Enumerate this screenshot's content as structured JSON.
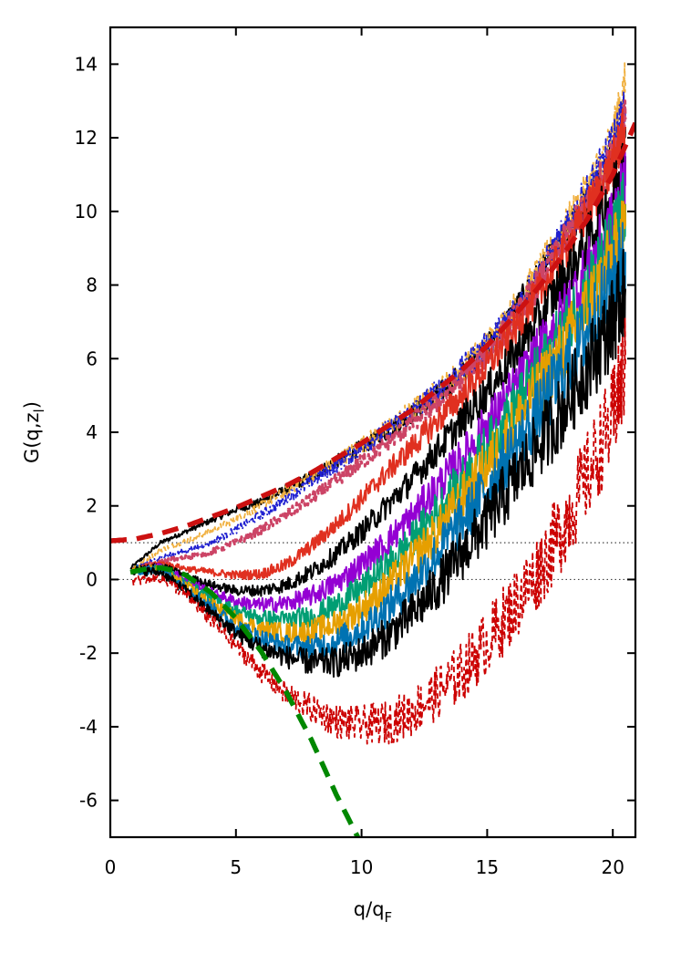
{
  "chart_data": {
    "type": "line",
    "title": "",
    "xlabel": "q/q",
    "xlabel_sub": "F",
    "ylabel": "G(q,z",
    "ylabel_sub": "l",
    "ylabel_close": ")",
    "xlim": [
      0,
      20.9
    ],
    "ylim": [
      -7,
      15
    ],
    "x_ticks": [
      0,
      5,
      10,
      15,
      20
    ],
    "y_ticks": [
      -6,
      -4,
      -2,
      0,
      2,
      4,
      6,
      8,
      10,
      12,
      14
    ],
    "reference_lines": [
      0,
      1
    ],
    "grid": false,
    "legend": "none",
    "series": [
      {
        "color": "#000000",
        "style": "solid",
        "width": 2.0,
        "noise": 0.22,
        "x": [
          0.8,
          2,
          3,
          4,
          5,
          6,
          7,
          8,
          9,
          10,
          11,
          12,
          13,
          14,
          15,
          16,
          17,
          18,
          19,
          20,
          20.5
        ],
        "y": [
          0.3,
          1.0,
          1.3,
          1.6,
          1.9,
          2.1,
          2.45,
          2.8,
          3.2,
          3.6,
          4.0,
          4.5,
          5.0,
          5.6,
          6.3,
          7.2,
          8.2,
          9.2,
          10.3,
          11.5,
          12.3
        ]
      },
      {
        "color": "#f0b040",
        "style": "dashed",
        "width": 1.8,
        "noise": 0.25,
        "x": [
          0.9,
          2,
          3,
          4,
          5,
          6,
          7,
          8,
          9,
          10,
          11,
          12,
          13,
          14,
          15,
          16,
          17,
          18,
          19,
          20,
          20.5
        ],
        "y": [
          0.3,
          0.8,
          1.05,
          1.3,
          1.65,
          2.0,
          2.4,
          2.8,
          3.2,
          3.65,
          4.1,
          4.6,
          5.1,
          5.7,
          6.4,
          7.3,
          8.3,
          9.4,
          10.6,
          12.0,
          13.5
        ]
      },
      {
        "color": "#2020d0",
        "style": "dashdot",
        "width": 1.8,
        "noise": 0.25,
        "x": [
          0.9,
          2,
          3,
          4,
          5,
          6,
          7,
          8,
          9,
          10,
          11,
          12,
          13,
          14,
          15,
          16,
          17,
          18,
          19,
          20,
          20.5
        ],
        "y": [
          0.3,
          0.6,
          0.78,
          1.0,
          1.35,
          1.75,
          2.2,
          2.65,
          3.1,
          3.6,
          4.05,
          4.55,
          5.1,
          5.7,
          6.35,
          7.2,
          8.2,
          9.3,
          10.5,
          11.8,
          12.8
        ]
      },
      {
        "color": "#cc4466",
        "style": "dashed",
        "width": 3.0,
        "noise": 0.22,
        "x": [
          0.9,
          2,
          3,
          4,
          5,
          6,
          7,
          8,
          9,
          10,
          11,
          12,
          13,
          14,
          15,
          16,
          17,
          18,
          19,
          20,
          20.5
        ],
        "y": [
          0.25,
          0.5,
          0.6,
          0.75,
          1.0,
          1.35,
          1.75,
          2.2,
          2.7,
          3.2,
          3.7,
          4.25,
          4.8,
          5.45,
          6.1,
          7.0,
          8.0,
          9.1,
          10.2,
          11.5,
          12.5
        ]
      },
      {
        "color": "#e03020",
        "style": "solid",
        "width": 2.0,
        "noise": 0.28,
        "x": [
          0.9,
          2,
          3,
          4,
          5,
          6,
          7,
          8,
          9,
          10,
          11,
          12,
          13,
          14,
          15,
          16,
          17,
          18,
          19,
          20,
          20.5
        ],
        "y": [
          0.25,
          0.45,
          0.3,
          0.2,
          0.12,
          0.15,
          0.4,
          0.9,
          1.5,
          2.2,
          2.9,
          3.6,
          4.3,
          5.0,
          5.8,
          6.7,
          7.7,
          8.8,
          10.0,
          11.3,
          12.3
        ]
      },
      {
        "color": "#000000",
        "style": "solid",
        "width": 2.0,
        "noise": 0.32,
        "x": [
          0.9,
          2,
          3,
          4,
          5,
          6,
          7,
          8,
          9,
          10,
          11,
          12,
          13,
          14,
          15,
          16,
          17,
          18,
          19,
          20,
          20.5
        ],
        "y": [
          0.25,
          0.4,
          0.1,
          -0.15,
          -0.3,
          -0.3,
          -0.15,
          0.2,
          0.7,
          1.3,
          2.0,
          2.7,
          3.5,
          4.3,
          5.1,
          6.0,
          7.0,
          8.1,
          9.2,
          10.5,
          11.5
        ]
      },
      {
        "color": "#9400d3",
        "style": "solid",
        "width": 2.0,
        "noise": 0.38,
        "x": [
          0.9,
          2,
          3,
          4,
          5,
          6,
          7,
          8,
          9,
          10,
          11,
          12,
          13,
          14,
          15,
          16,
          17,
          18,
          19,
          20,
          20.5
        ],
        "y": [
          0.25,
          0.35,
          0.0,
          -0.35,
          -0.6,
          -0.7,
          -0.65,
          -0.45,
          -0.1,
          0.4,
          1.0,
          1.7,
          2.5,
          3.3,
          4.2,
          5.1,
          6.1,
          7.2,
          8.4,
          9.7,
          10.7
        ]
      },
      {
        "color": "#009e73",
        "style": "solid",
        "width": 2.0,
        "noise": 0.42,
        "x": [
          0.9,
          2,
          3,
          4,
          5,
          6,
          7,
          8,
          9,
          10,
          11,
          12,
          13,
          14,
          15,
          16,
          17,
          18,
          19,
          20,
          20.5
        ],
        "y": [
          0.25,
          0.3,
          -0.1,
          -0.5,
          -0.85,
          -1.05,
          -1.1,
          -1.0,
          -0.7,
          -0.25,
          0.35,
          1.05,
          1.85,
          2.7,
          3.6,
          4.6,
          5.6,
          6.7,
          7.9,
          9.2,
          10.2
        ]
      },
      {
        "color": "#e69f00",
        "style": "solid",
        "width": 2.0,
        "noise": 0.45,
        "x": [
          0.9,
          2,
          3,
          4,
          5,
          6,
          7,
          8,
          9,
          10,
          11,
          12,
          13,
          14,
          15,
          16,
          17,
          18,
          19,
          20,
          20.5
        ],
        "y": [
          0.25,
          0.3,
          -0.15,
          -0.65,
          -1.05,
          -1.35,
          -1.45,
          -1.4,
          -1.2,
          -0.8,
          -0.2,
          0.5,
          1.3,
          2.2,
          3.1,
          4.1,
          5.1,
          6.2,
          7.4,
          8.7,
          9.6
        ]
      },
      {
        "color": "#0072b2",
        "style": "solid",
        "width": 2.0,
        "noise": 0.48,
        "x": [
          0.9,
          2,
          3,
          4,
          5,
          6,
          7,
          8,
          9,
          10,
          11,
          12,
          13,
          14,
          15,
          16,
          17,
          18,
          19,
          20,
          20.5
        ],
        "y": [
          0.25,
          0.25,
          -0.2,
          -0.75,
          -1.25,
          -1.6,
          -1.8,
          -1.85,
          -1.7,
          -1.35,
          -0.8,
          -0.1,
          0.7,
          1.6,
          2.5,
          3.5,
          4.5,
          5.6,
          6.8,
          8.0,
          8.9
        ]
      },
      {
        "color": "#000000",
        "style": "solid",
        "width": 2.0,
        "noise": 0.5,
        "x": [
          0.9,
          2,
          3,
          4,
          5,
          6,
          7,
          8,
          9,
          10,
          11,
          12,
          13,
          14,
          15,
          16,
          17,
          18,
          19,
          20,
          20.5
        ],
        "y": [
          0.25,
          0.2,
          -0.3,
          -0.9,
          -1.45,
          -1.85,
          -2.1,
          -2.25,
          -2.25,
          -2.0,
          -1.55,
          -0.95,
          -0.2,
          0.7,
          1.6,
          2.6,
          3.6,
          4.6,
          5.8,
          7.0,
          7.9
        ]
      },
      {
        "color": "#cc0000",
        "style": "dashed",
        "width": 1.8,
        "noise": 0.55,
        "x": [
          0.9,
          2,
          3,
          4,
          5,
          6,
          7,
          8,
          9,
          10,
          11,
          12,
          13,
          14,
          15,
          16,
          17,
          18,
          19,
          20,
          20.5
        ],
        "y": [
          -0.05,
          0.05,
          -0.4,
          -1.1,
          -1.8,
          -2.5,
          -3.1,
          -3.5,
          -3.85,
          -3.95,
          -3.9,
          -3.6,
          -3.1,
          -2.5,
          -1.7,
          -0.8,
          0.2,
          1.4,
          2.8,
          4.4,
          5.8
        ]
      },
      {
        "color": "#cc1111",
        "style": "longdash",
        "width": 5.5,
        "noise": 0,
        "x": [
          0,
          1,
          2,
          3,
          4,
          5,
          6,
          7,
          8,
          9,
          10,
          11,
          12,
          13,
          14,
          15,
          16,
          17,
          18,
          19,
          20,
          20.9
        ],
        "y": [
          1.05,
          1.1,
          1.25,
          1.45,
          1.7,
          1.95,
          2.25,
          2.55,
          2.9,
          3.3,
          3.7,
          4.15,
          4.6,
          5.15,
          5.7,
          6.35,
          7.1,
          7.9,
          8.8,
          9.8,
          11.0,
          12.4
        ]
      },
      {
        "color": "#008800",
        "style": "longdash",
        "width": 5.5,
        "noise": 0,
        "x": [
          0.8,
          1.5,
          2.0,
          2.5,
          3.0,
          4.0,
          5.0,
          6.0,
          7.0,
          8.0,
          9.0,
          9.85
        ],
        "y": [
          0.2,
          0.3,
          0.32,
          0.25,
          0.12,
          -0.35,
          -1.05,
          -1.95,
          -3.05,
          -4.35,
          -5.85,
          -7.0
        ]
      }
    ]
  }
}
